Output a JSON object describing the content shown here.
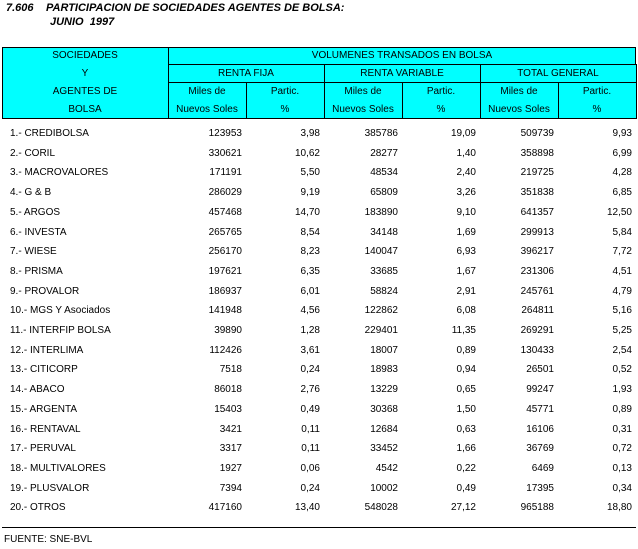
{
  "header": {
    "number": "7.606",
    "title": "PARTICIPACION DE SOCIEDADES AGENTES DE BOLSA:",
    "subtitle": "JUNIO  1997"
  },
  "table": {
    "row_label": [
      "SOCIEDADES",
      "Y",
      "AGENTES DE",
      "BOLSA"
    ],
    "group": "VOLUMENES TRANSADOS EN BOLSA",
    "subgroups": [
      "RENTA FIJA",
      "RENTA VARIABLE",
      "TOTAL GENERAL"
    ],
    "columns": [
      [
        "Miles de",
        "Nuevos Soles"
      ],
      [
        "Partic.",
        "%"
      ],
      [
        "Miles de",
        "Nuevos Soles"
      ],
      [
        "Partic.",
        "%"
      ],
      [
        "Miles de",
        "Nuevos Soles"
      ],
      [
        "Partic.",
        "%"
      ]
    ],
    "rows": [
      [
        "1.- CREDIBOLSA",
        "123953",
        "3,98",
        "385786",
        "19,09",
        "509739",
        "9,93"
      ],
      [
        "2.- CORIL",
        "330621",
        "10,62",
        "28277",
        "1,40",
        "358898",
        "6,99"
      ],
      [
        "3.- MACROVALORES",
        "171191",
        "5,50",
        "48534",
        "2,40",
        "219725",
        "4,28"
      ],
      [
        "4.- G & B",
        "286029",
        "9,19",
        "65809",
        "3,26",
        "351838",
        "6,85"
      ],
      [
        "5.- ARGOS",
        "457468",
        "14,70",
        "183890",
        "9,10",
        "641357",
        "12,50"
      ],
      [
        "6.- INVESTA",
        "265765",
        "8,54",
        "34148",
        "1,69",
        "299913",
        "5,84"
      ],
      [
        "7.- WIESE",
        "256170",
        "8,23",
        "140047",
        "6,93",
        "396217",
        "7,72"
      ],
      [
        "8.- PRISMA",
        "197621",
        "6,35",
        "33685",
        "1,67",
        "231306",
        "4,51"
      ],
      [
        "9.- PROVALOR",
        "186937",
        "6,01",
        "58824",
        "2,91",
        "245761",
        "4,79"
      ],
      [
        "10.- MGS Y Asociados",
        "141948",
        "4,56",
        "122862",
        "6,08",
        "264811",
        "5,16"
      ],
      [
        "11.- INTERFIP BOLSA",
        "39890",
        "1,28",
        "229401",
        "11,35",
        "269291",
        "5,25"
      ],
      [
        "12.- INTERLIMA",
        "112426",
        "3,61",
        "18007",
        "0,89",
        "130433",
        "2,54"
      ],
      [
        "13.- CITICORP",
        "7518",
        "0,24",
        "18983",
        "0,94",
        "26501",
        "0,52"
      ],
      [
        "14.- ABACO",
        "86018",
        "2,76",
        "13229",
        "0,65",
        "99247",
        "1,93"
      ],
      [
        "15.- ARGENTA",
        "15403",
        "0,49",
        "30368",
        "1,50",
        "45771",
        "0,89"
      ],
      [
        "16.- RENTAVAL",
        "3421",
        "0,11",
        "12684",
        "0,63",
        "16106",
        "0,31"
      ],
      [
        "17.- PERUVAL",
        "3317",
        "0,11",
        "33452",
        "1,66",
        "36769",
        "0,72"
      ],
      [
        "18.- MULTIVALORES",
        "1927",
        "0,06",
        "4542",
        "0,22",
        "6469",
        "0,13"
      ],
      [
        "19.- PLUSVALOR",
        "7394",
        "0,24",
        "10002",
        "0,49",
        "17395",
        "0,34"
      ],
      [
        "20.- OTROS",
        "417160",
        "13,40",
        "548028",
        "27,12",
        "965188",
        "18,80"
      ]
    ]
  },
  "footer": "FUENTE: SNE-BVL"
}
